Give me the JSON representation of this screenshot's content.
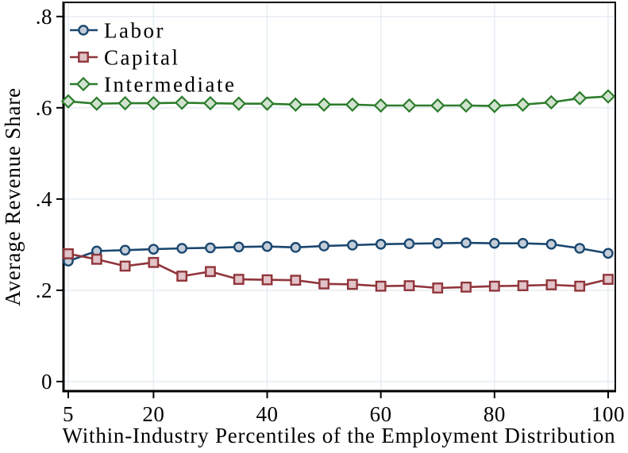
{
  "chart_data": {
    "type": "line",
    "title": "",
    "xlabel": "Within-Industry Percentiles of the Employment Distribution",
    "ylabel": "Average Revenue Share",
    "x": [
      5,
      10,
      15,
      20,
      25,
      30,
      35,
      40,
      45,
      50,
      55,
      60,
      65,
      70,
      75,
      80,
      85,
      90,
      95,
      100
    ],
    "series": [
      {
        "name": "Labor",
        "marker": "circle",
        "line_color": "#1a476f",
        "marker_fill": "#c3cdd9",
        "values": [
          0.264,
          0.286,
          0.288,
          0.29,
          0.292,
          0.293,
          0.295,
          0.296,
          0.294,
          0.297,
          0.299,
          0.301,
          0.302,
          0.303,
          0.304,
          0.303,
          0.303,
          0.301,
          0.292,
          0.281
        ]
      },
      {
        "name": "Capital",
        "marker": "square",
        "line_color": "#90353b",
        "marker_fill": "#e2c3c7",
        "values": [
          0.28,
          0.268,
          0.253,
          0.261,
          0.231,
          0.241,
          0.224,
          0.223,
          0.222,
          0.214,
          0.213,
          0.209,
          0.21,
          0.205,
          0.207,
          0.209,
          0.21,
          0.212,
          0.209,
          0.224
        ]
      },
      {
        "name": "Intermediate",
        "marker": "diamond",
        "line_color": "#2c7c2c",
        "marker_fill": "#d1e3cf",
        "values": [
          0.614,
          0.609,
          0.61,
          0.61,
          0.611,
          0.61,
          0.609,
          0.609,
          0.607,
          0.607,
          0.607,
          0.605,
          0.605,
          0.605,
          0.605,
          0.604,
          0.607,
          0.612,
          0.621,
          0.625
        ]
      }
    ],
    "xticks": {
      "values": [
        5,
        20,
        40,
        60,
        80,
        100
      ],
      "labels": [
        "5",
        "20",
        "40",
        "60",
        "80",
        "100"
      ]
    },
    "yticks": {
      "values": [
        0,
        0.2,
        0.4,
        0.6,
        0.8
      ],
      "labels": [
        "0",
        ".2",
        ".4",
        ".6",
        ".8"
      ]
    },
    "xlim": [
      4.16,
      101.26
    ],
    "ylim": [
      -0.021,
      0.831
    ],
    "grid": true,
    "grid_color": "#e7eef3",
    "axis_color": "#000000",
    "background": "#ffffff",
    "legend": {
      "position": "top-left-inside",
      "entries": [
        "Labor",
        "Capital",
        "Intermediate"
      ]
    }
  }
}
